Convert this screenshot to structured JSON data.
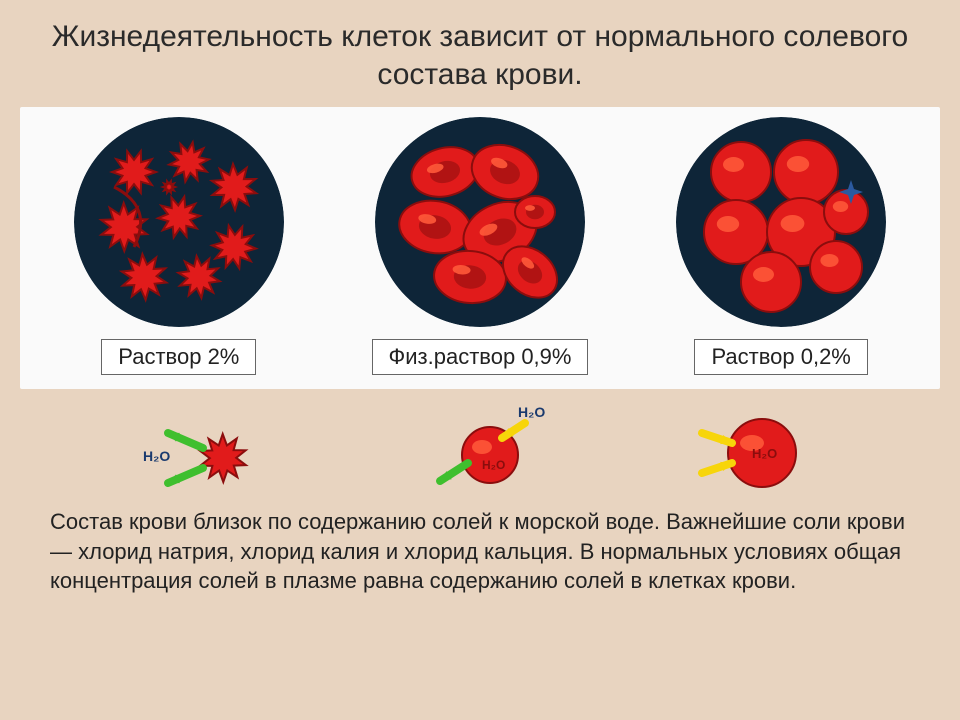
{
  "title": "Жизнедеятельность клеток зависит от нормального солевого состава крови.",
  "circles_bg": "#0e2538",
  "cell_fill": "#e11b1b",
  "cell_outline": "#8b0d0d",
  "cell_highlight": "#ff5a3a",
  "samples": [
    {
      "label": "Раствор 2%",
      "state": "crenated"
    },
    {
      "label": "Физ.раствор 0,9%",
      "state": "normal"
    },
    {
      "label": "Раствор 0,2%",
      "state": "swollen"
    }
  ],
  "osmosis": {
    "water_label": "H₂O",
    "arrow_out_color": "#3fbf2e",
    "arrow_in_color": "#f7d50a",
    "cells": [
      {
        "mode": "shrink"
      },
      {
        "mode": "balanced"
      },
      {
        "mode": "swell"
      }
    ]
  },
  "body_text": "  Состав крови близок по содержанию солей к морской воде. Важнейшие соли крови — хлорид натрия, хлорид калия и хлорид кальция. В нормальных условиях общая концентрация солей в плазме равна содержанию солей в клетках крови."
}
